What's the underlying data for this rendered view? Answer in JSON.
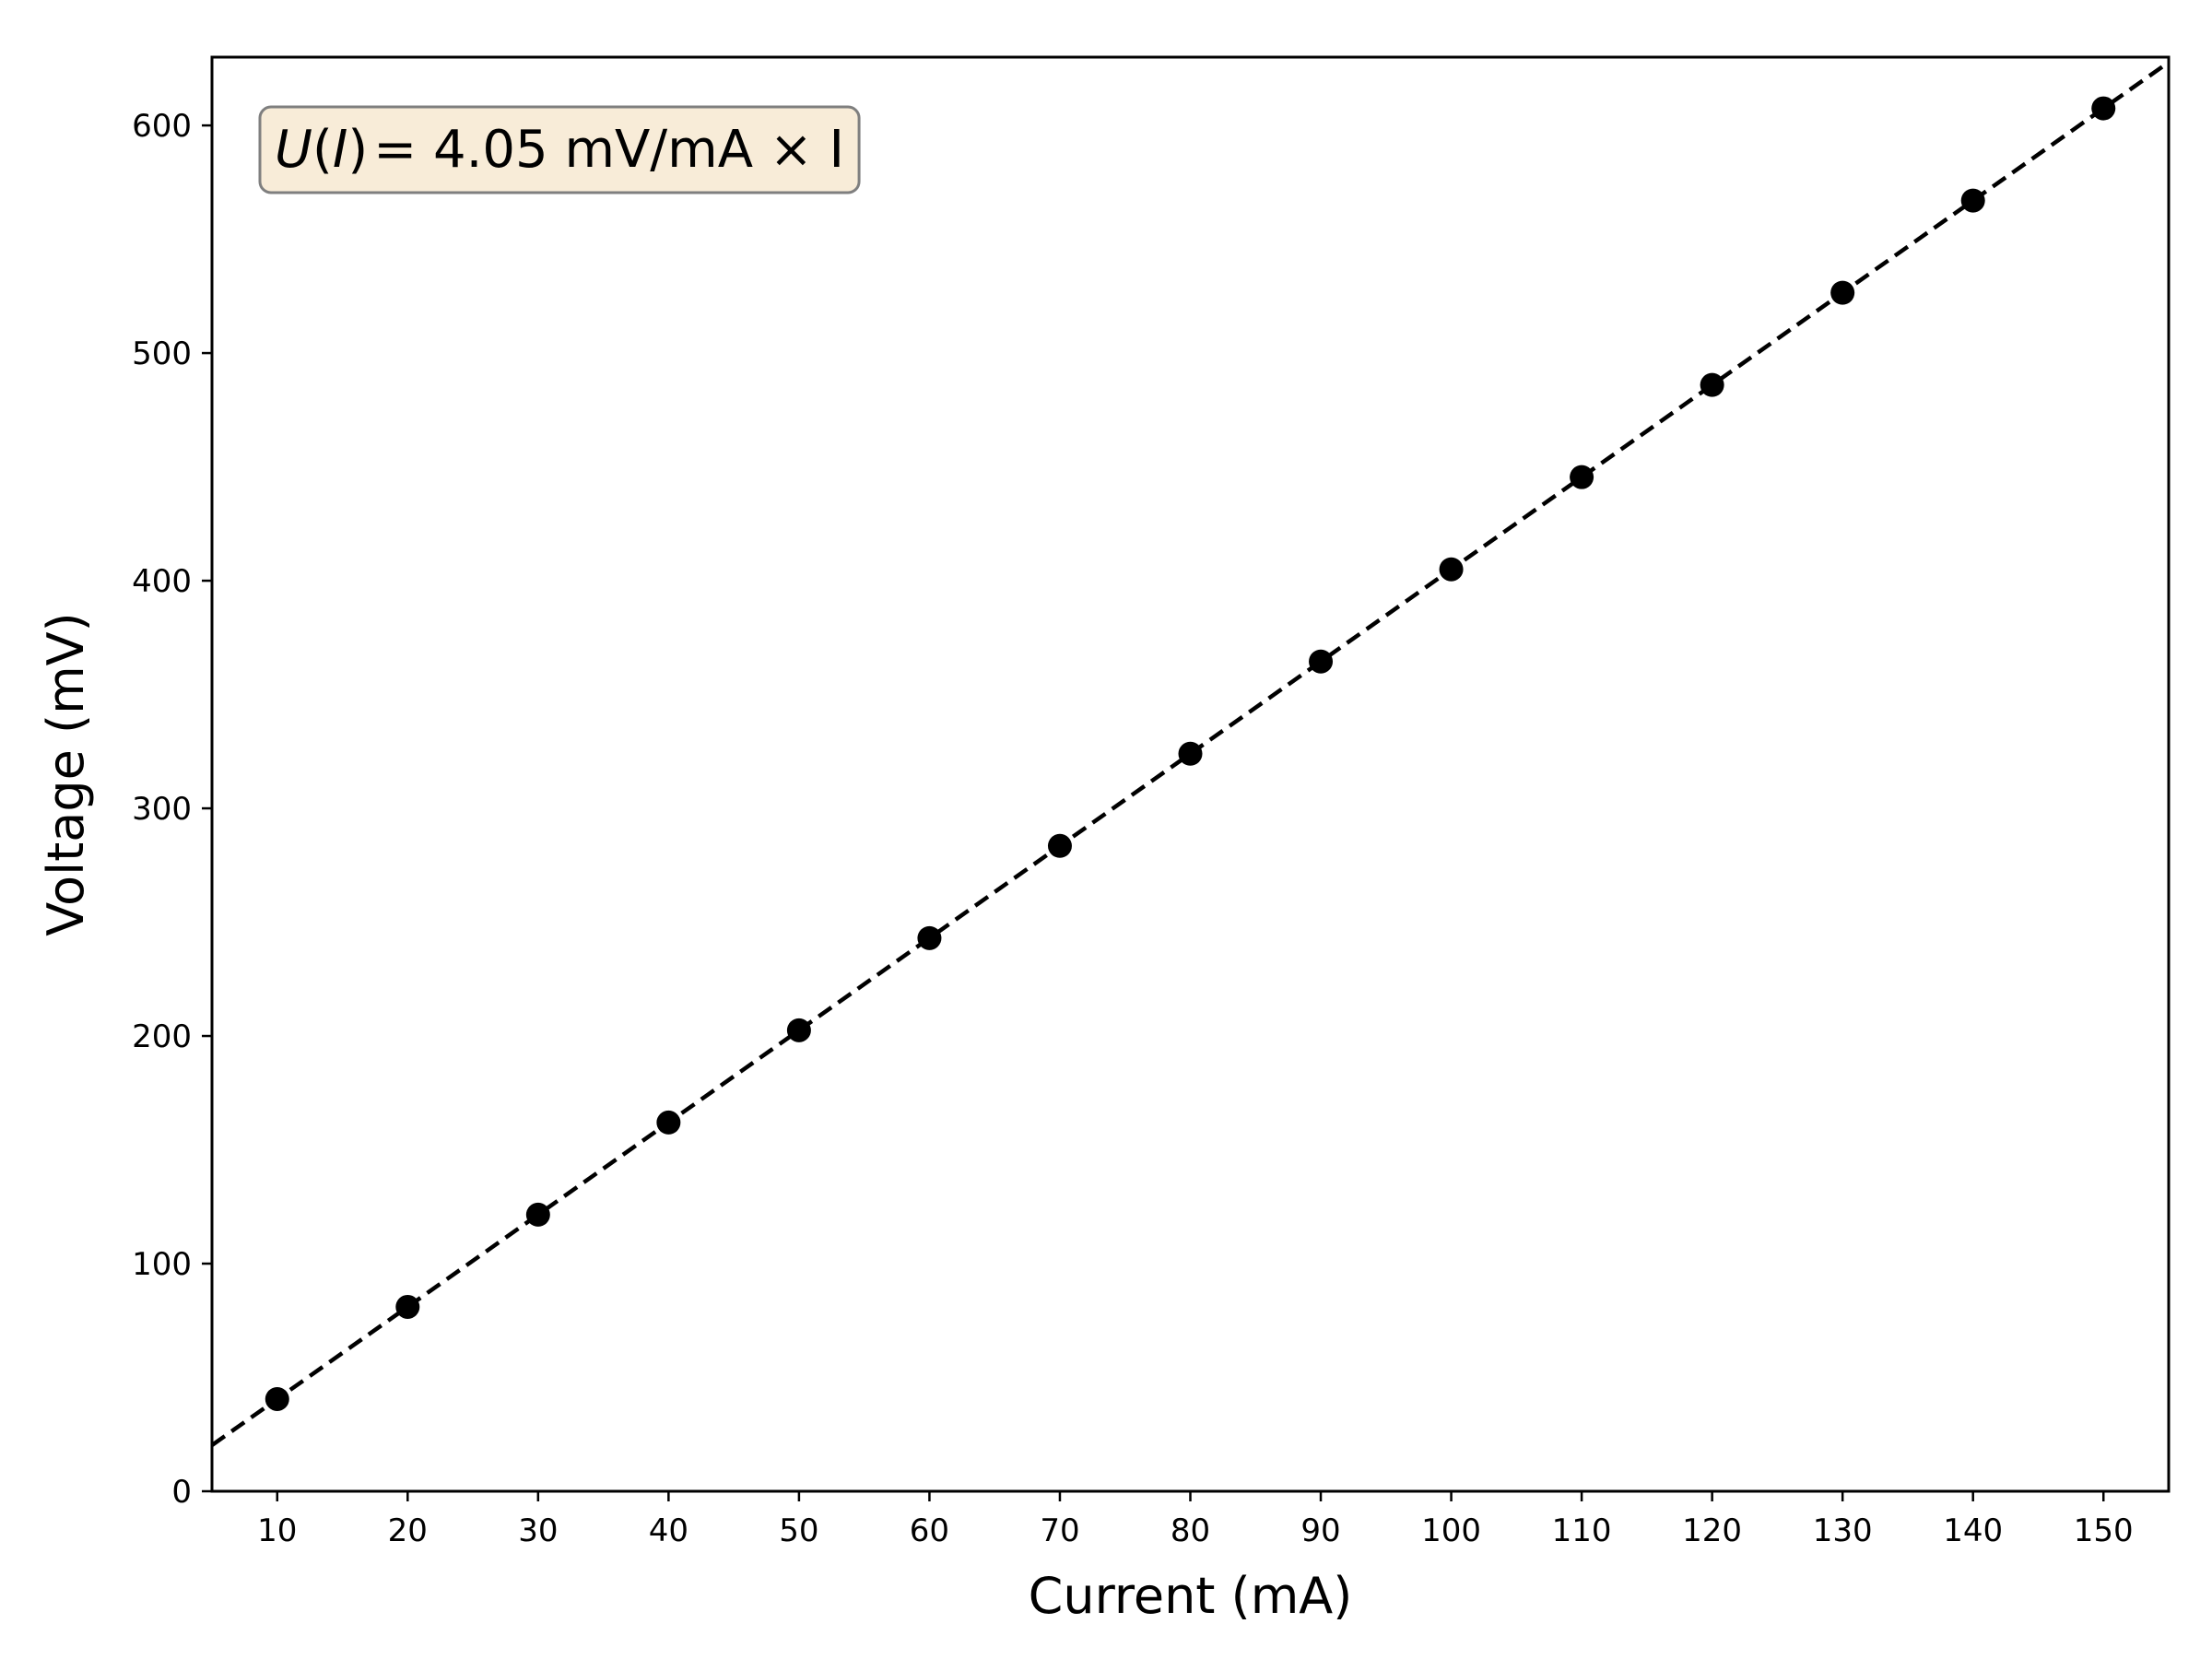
{
  "chart_data": {
    "type": "scatter",
    "title": "",
    "xlabel": "Current (mA)",
    "ylabel": "Voltage (mV)",
    "xlim": [
      5,
      155
    ],
    "ylim": [
      0,
      630
    ],
    "xticks": [
      10,
      20,
      30,
      40,
      50,
      60,
      70,
      80,
      90,
      100,
      110,
      120,
      130,
      140,
      150
    ],
    "yticks": [
      0,
      100,
      200,
      300,
      400,
      500,
      600
    ],
    "grid": false,
    "series": [
      {
        "x": [
          10,
          20,
          30,
          40,
          50,
          60,
          70,
          80,
          90,
          100,
          110,
          120,
          130,
          140,
          150
        ],
        "y": [
          40.5,
          81,
          121.5,
          162,
          202.5,
          243,
          283.5,
          324,
          364.5,
          405,
          445.5,
          486,
          526.5,
          567,
          607.5
        ],
        "color": "#000000",
        "marker": "circle"
      }
    ],
    "fit_line": {
      "slope": 4.05,
      "intercept": 0,
      "style": "dashed",
      "color": "#000000"
    },
    "annotation": {
      "func": "U",
      "arg": "I",
      "rhs": "= 4.05 mV/mA × I",
      "position": "top-left",
      "background": "#f8ecd8",
      "border": "#7f7f7f"
    }
  }
}
